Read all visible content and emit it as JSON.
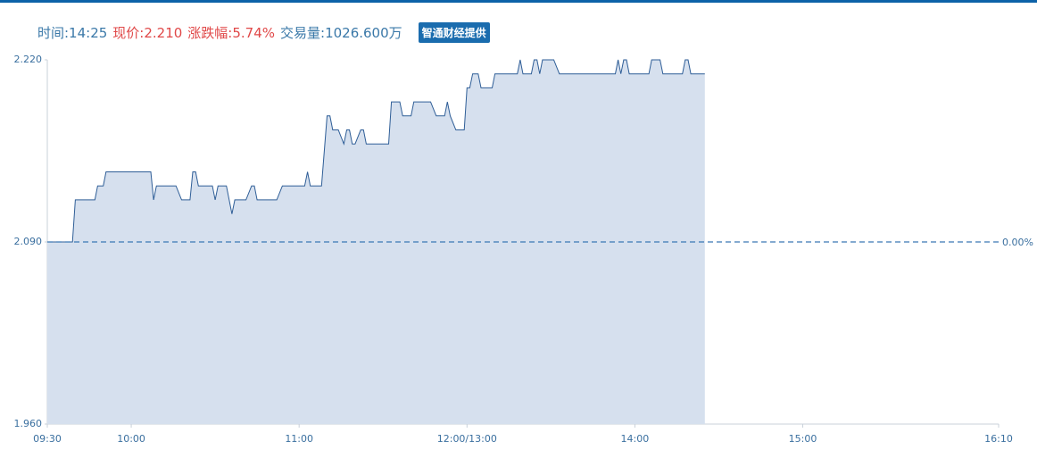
{
  "chart_data": {
    "type": "area",
    "header_items": [
      {
        "text": "时间:14:25",
        "color": "#3a78a8"
      },
      {
        "text": "现价:2.210",
        "color": "#e04848"
      },
      {
        "text": "涨跌幅:5.74%",
        "color": "#e04848"
      },
      {
        "text": "交易量:1026.600万",
        "color": "#3a78a8"
      }
    ],
    "source_badge": "智通财经提供",
    "color": "#2f5e97",
    "fill": "#d6e0ee",
    "baseline": 2.09,
    "baseline_label": "0.00%",
    "xlim": [
      0,
      340
    ],
    "xticks": [
      {
        "value": 0,
        "label": "09:30"
      },
      {
        "value": 30,
        "label": "10:00"
      },
      {
        "value": 90,
        "label": "11:00"
      },
      {
        "value": 150,
        "label": "12:00/13:00"
      },
      {
        "value": 210,
        "label": "14:00"
      },
      {
        "value": 270,
        "label": "15:00"
      },
      {
        "value": 340,
        "label": "16:10"
      }
    ],
    "ylim": [
      1.96,
      2.22
    ],
    "yticks": [
      {
        "value": 1.96,
        "label": "1.960"
      },
      {
        "value": 2.09,
        "label": "2.090"
      },
      {
        "value": 2.22,
        "label": "2.220"
      }
    ],
    "x": [
      0,
      9,
      10,
      17,
      18,
      20,
      21,
      37,
      38,
      39,
      46,
      48,
      51,
      52,
      53,
      54,
      59,
      60,
      61,
      64,
      66,
      67,
      71,
      73,
      74,
      75,
      82,
      84,
      92,
      93,
      94,
      98,
      100,
      101,
      102,
      104,
      106,
      107,
      108,
      109,
      110,
      112,
      113,
      114,
      122,
      123,
      126,
      127,
      130,
      131,
      137,
      139,
      142,
      143,
      144,
      146,
      149,
      150,
      151,
      152,
      154,
      155,
      159,
      160,
      168,
      169,
      170,
      173,
      174,
      175,
      176,
      177,
      181,
      183,
      203,
      204,
      205,
      206,
      207,
      208,
      215,
      216,
      219,
      220,
      227,
      228,
      229,
      230,
      235
    ],
    "values": [
      2.09,
      2.09,
      2.12,
      2.12,
      2.13,
      2.13,
      2.14,
      2.14,
      2.12,
      2.13,
      2.13,
      2.12,
      2.12,
      2.14,
      2.14,
      2.13,
      2.13,
      2.12,
      2.13,
      2.13,
      2.11,
      2.12,
      2.12,
      2.13,
      2.13,
      2.12,
      2.12,
      2.13,
      2.13,
      2.14,
      2.13,
      2.13,
      2.18,
      2.18,
      2.17,
      2.17,
      2.16,
      2.17,
      2.17,
      2.16,
      2.16,
      2.17,
      2.17,
      2.16,
      2.16,
      2.19,
      2.19,
      2.18,
      2.18,
      2.19,
      2.19,
      2.18,
      2.18,
      2.19,
      2.18,
      2.17,
      2.17,
      2.2,
      2.2,
      2.21,
      2.21,
      2.2,
      2.2,
      2.21,
      2.21,
      2.22,
      2.21,
      2.21,
      2.22,
      2.22,
      2.21,
      2.22,
      2.22,
      2.21,
      2.21,
      2.22,
      2.21,
      2.22,
      2.22,
      2.21,
      2.21,
      2.22,
      2.22,
      2.21,
      2.21,
      2.22,
      2.22,
      2.21,
      2.21
    ]
  }
}
